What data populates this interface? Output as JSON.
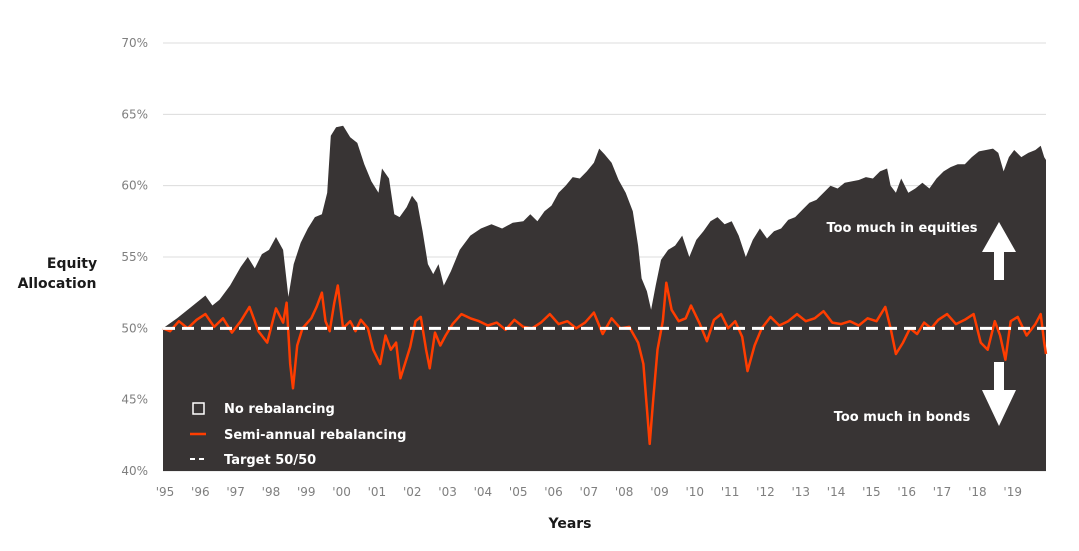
{
  "chart_data": {
    "type": "area",
    "title": "",
    "ylabel_lines": [
      "Equity",
      "Allocation"
    ],
    "xlabel": "Years",
    "ylim": [
      40,
      70
    ],
    "yticks": [
      40,
      45,
      50,
      55,
      60,
      65,
      70
    ],
    "ytick_labels": [
      "40%",
      "45%",
      "50%",
      "55%",
      "60%",
      "65%",
      "70%"
    ],
    "xlim": [
      1995.0,
      2020.0
    ],
    "xtick_labels": [
      "'95",
      "'96",
      "'97",
      "'98",
      "'99",
      "'00",
      "'01",
      "'02",
      "'03",
      "'04",
      "'05",
      "'06",
      "'07",
      "'08",
      "'09",
      "'10",
      "'11",
      "'12",
      "'13",
      "'14",
      "'15",
      "'16",
      "'17",
      "'18",
      "'19"
    ],
    "grid": "horizontal",
    "legend_position": "bottom-left (inside plot)",
    "series": [
      {
        "name": "No rebalancing",
        "kind": "area",
        "color": "#383434",
        "points": [
          [
            1995.0,
            50.0
          ],
          [
            1995.4,
            50.7
          ],
          [
            1995.8,
            51.5
          ],
          [
            1996.2,
            52.3
          ],
          [
            1996.4,
            51.6
          ],
          [
            1996.6,
            52.0
          ],
          [
            1996.9,
            53.0
          ],
          [
            1997.2,
            54.3
          ],
          [
            1997.4,
            55.0
          ],
          [
            1997.6,
            54.2
          ],
          [
            1997.8,
            55.2
          ],
          [
            1998.0,
            55.5
          ],
          [
            1998.2,
            56.4
          ],
          [
            1998.4,
            55.5
          ],
          [
            1998.55,
            52.2
          ],
          [
            1998.7,
            54.5
          ],
          [
            1998.9,
            56.0
          ],
          [
            1999.1,
            57.0
          ],
          [
            1999.3,
            57.8
          ],
          [
            1999.5,
            58.0
          ],
          [
            1999.65,
            59.5
          ],
          [
            1999.75,
            63.5
          ],
          [
            1999.9,
            64.1
          ],
          [
            2000.1,
            64.2
          ],
          [
            2000.3,
            63.4
          ],
          [
            2000.5,
            63.0
          ],
          [
            2000.7,
            61.5
          ],
          [
            2000.9,
            60.3
          ],
          [
            2001.1,
            59.5
          ],
          [
            2001.2,
            61.2
          ],
          [
            2001.4,
            60.5
          ],
          [
            2001.55,
            58.0
          ],
          [
            2001.7,
            57.8
          ],
          [
            2001.9,
            58.5
          ],
          [
            2002.05,
            59.3
          ],
          [
            2002.2,
            58.8
          ],
          [
            2002.35,
            56.8
          ],
          [
            2002.5,
            54.5
          ],
          [
            2002.65,
            53.8
          ],
          [
            2002.8,
            54.5
          ],
          [
            2002.95,
            53.0
          ],
          [
            2003.15,
            54.0
          ],
          [
            2003.4,
            55.5
          ],
          [
            2003.7,
            56.5
          ],
          [
            2004.0,
            57.0
          ],
          [
            2004.3,
            57.3
          ],
          [
            2004.6,
            57.0
          ],
          [
            2004.9,
            57.4
          ],
          [
            2005.2,
            57.5
          ],
          [
            2005.4,
            58.0
          ],
          [
            2005.6,
            57.5
          ],
          [
            2005.8,
            58.2
          ],
          [
            2006.0,
            58.6
          ],
          [
            2006.2,
            59.5
          ],
          [
            2006.4,
            60.0
          ],
          [
            2006.6,
            60.6
          ],
          [
            2006.8,
            60.5
          ],
          [
            2007.0,
            61.0
          ],
          [
            2007.2,
            61.6
          ],
          [
            2007.35,
            62.6
          ],
          [
            2007.5,
            62.2
          ],
          [
            2007.7,
            61.6
          ],
          [
            2007.9,
            60.4
          ],
          [
            2008.1,
            59.5
          ],
          [
            2008.3,
            58.2
          ],
          [
            2008.45,
            55.8
          ],
          [
            2008.55,
            53.5
          ],
          [
            2008.7,
            52.6
          ],
          [
            2008.82,
            51.3
          ],
          [
            2008.95,
            53.0
          ],
          [
            2009.1,
            54.8
          ],
          [
            2009.3,
            55.5
          ],
          [
            2009.5,
            55.8
          ],
          [
            2009.7,
            56.5
          ],
          [
            2009.9,
            55.0
          ],
          [
            2010.1,
            56.2
          ],
          [
            2010.3,
            56.8
          ],
          [
            2010.5,
            57.5
          ],
          [
            2010.7,
            57.8
          ],
          [
            2010.9,
            57.3
          ],
          [
            2011.1,
            57.5
          ],
          [
            2011.3,
            56.5
          ],
          [
            2011.5,
            55.0
          ],
          [
            2011.7,
            56.2
          ],
          [
            2011.9,
            57.0
          ],
          [
            2012.1,
            56.3
          ],
          [
            2012.3,
            56.8
          ],
          [
            2012.5,
            57.0
          ],
          [
            2012.7,
            57.6
          ],
          [
            2012.9,
            57.8
          ],
          [
            2013.1,
            58.3
          ],
          [
            2013.3,
            58.8
          ],
          [
            2013.5,
            59.0
          ],
          [
            2013.7,
            59.5
          ],
          [
            2013.9,
            60.0
          ],
          [
            2014.1,
            59.8
          ],
          [
            2014.3,
            60.2
          ],
          [
            2014.5,
            60.3
          ],
          [
            2014.7,
            60.4
          ],
          [
            2014.9,
            60.6
          ],
          [
            2015.1,
            60.5
          ],
          [
            2015.3,
            61.0
          ],
          [
            2015.5,
            61.2
          ],
          [
            2015.6,
            60.0
          ],
          [
            2015.75,
            59.5
          ],
          [
            2015.9,
            60.5
          ],
          [
            2016.1,
            59.5
          ],
          [
            2016.3,
            59.8
          ],
          [
            2016.5,
            60.2
          ],
          [
            2016.7,
            59.8
          ],
          [
            2016.9,
            60.5
          ],
          [
            2017.1,
            61.0
          ],
          [
            2017.3,
            61.3
          ],
          [
            2017.5,
            61.5
          ],
          [
            2017.7,
            61.5
          ],
          [
            2017.9,
            62.0
          ],
          [
            2018.1,
            62.4
          ],
          [
            2018.3,
            62.5
          ],
          [
            2018.5,
            62.6
          ],
          [
            2018.65,
            62.3
          ],
          [
            2018.8,
            61.0
          ],
          [
            2018.95,
            62.0
          ],
          [
            2019.1,
            62.5
          ],
          [
            2019.3,
            62.0
          ],
          [
            2019.5,
            62.3
          ],
          [
            2019.7,
            62.5
          ],
          [
            2019.85,
            62.8
          ],
          [
            2019.95,
            62.0
          ],
          [
            2020.0,
            61.8
          ]
        ]
      },
      {
        "name": "Semi-annual rebalancing",
        "kind": "line",
        "color": "#ff3d00",
        "points": [
          [
            1995.0,
            50.0
          ],
          [
            1995.2,
            49.8
          ],
          [
            1995.45,
            50.5
          ],
          [
            1995.7,
            50.0
          ],
          [
            1995.95,
            50.6
          ],
          [
            1996.2,
            51.0
          ],
          [
            1996.45,
            50.1
          ],
          [
            1996.7,
            50.7
          ],
          [
            1996.95,
            49.7
          ],
          [
            1997.2,
            50.5
          ],
          [
            1997.45,
            51.5
          ],
          [
            1997.7,
            49.8
          ],
          [
            1997.95,
            49.0
          ],
          [
            1998.2,
            51.4
          ],
          [
            1998.4,
            50.4
          ],
          [
            1998.5,
            51.8
          ],
          [
            1998.6,
            47.5
          ],
          [
            1998.68,
            45.8
          ],
          [
            1998.8,
            48.8
          ],
          [
            1998.95,
            50.0
          ],
          [
            1999.2,
            50.7
          ],
          [
            1999.35,
            51.5
          ],
          [
            1999.5,
            52.5
          ],
          [
            1999.6,
            50.5
          ],
          [
            1999.72,
            49.8
          ],
          [
            1999.85,
            51.8
          ],
          [
            1999.95,
            53.0
          ],
          [
            2000.1,
            50.0
          ],
          [
            2000.3,
            50.5
          ],
          [
            2000.45,
            49.8
          ],
          [
            2000.6,
            50.6
          ],
          [
            2000.8,
            50.0
          ],
          [
            2000.95,
            48.5
          ],
          [
            2001.15,
            47.5
          ],
          [
            2001.3,
            49.5
          ],
          [
            2001.45,
            48.5
          ],
          [
            2001.6,
            49.0
          ],
          [
            2001.72,
            46.5
          ],
          [
            2001.85,
            47.5
          ],
          [
            2002.0,
            48.7
          ],
          [
            2002.15,
            50.5
          ],
          [
            2002.3,
            50.8
          ],
          [
            2002.45,
            48.5
          ],
          [
            2002.55,
            47.2
          ],
          [
            2002.7,
            49.7
          ],
          [
            2002.85,
            48.8
          ],
          [
            2003.0,
            49.5
          ],
          [
            2003.2,
            50.3
          ],
          [
            2003.45,
            51.0
          ],
          [
            2003.7,
            50.7
          ],
          [
            2003.95,
            50.5
          ],
          [
            2004.2,
            50.2
          ],
          [
            2004.45,
            50.4
          ],
          [
            2004.7,
            49.9
          ],
          [
            2004.95,
            50.6
          ],
          [
            2005.2,
            50.1
          ],
          [
            2005.45,
            50.0
          ],
          [
            2005.7,
            50.4
          ],
          [
            2005.95,
            51.0
          ],
          [
            2006.2,
            50.3
          ],
          [
            2006.45,
            50.5
          ],
          [
            2006.7,
            50.0
          ],
          [
            2006.95,
            50.4
          ],
          [
            2007.2,
            51.1
          ],
          [
            2007.45,
            49.6
          ],
          [
            2007.7,
            50.7
          ],
          [
            2007.95,
            50.0
          ],
          [
            2008.2,
            50.1
          ],
          [
            2008.45,
            49.0
          ],
          [
            2008.6,
            47.5
          ],
          [
            2008.68,
            45.0
          ],
          [
            2008.78,
            41.9
          ],
          [
            2008.88,
            45.0
          ],
          [
            2009.0,
            48.5
          ],
          [
            2009.15,
            50.5
          ],
          [
            2009.25,
            53.2
          ],
          [
            2009.4,
            51.3
          ],
          [
            2009.6,
            50.5
          ],
          [
            2009.8,
            50.7
          ],
          [
            2009.95,
            51.6
          ],
          [
            2010.2,
            50.3
          ],
          [
            2010.4,
            49.1
          ],
          [
            2010.6,
            50.6
          ],
          [
            2010.8,
            51.0
          ],
          [
            2011.0,
            50.0
          ],
          [
            2011.2,
            50.5
          ],
          [
            2011.4,
            49.4
          ],
          [
            2011.55,
            47.0
          ],
          [
            2011.75,
            48.8
          ],
          [
            2011.95,
            50.0
          ],
          [
            2012.2,
            50.8
          ],
          [
            2012.45,
            50.2
          ],
          [
            2012.7,
            50.5
          ],
          [
            2012.95,
            51.0
          ],
          [
            2013.2,
            50.5
          ],
          [
            2013.45,
            50.7
          ],
          [
            2013.7,
            51.2
          ],
          [
            2013.95,
            50.4
          ],
          [
            2014.2,
            50.3
          ],
          [
            2014.45,
            50.5
          ],
          [
            2014.7,
            50.2
          ],
          [
            2014.95,
            50.7
          ],
          [
            2015.2,
            50.5
          ],
          [
            2015.45,
            51.5
          ],
          [
            2015.6,
            50.0
          ],
          [
            2015.75,
            48.2
          ],
          [
            2015.95,
            49.0
          ],
          [
            2016.15,
            50.0
          ],
          [
            2016.35,
            49.6
          ],
          [
            2016.55,
            50.4
          ],
          [
            2016.75,
            50.0
          ],
          [
            2016.95,
            50.6
          ],
          [
            2017.2,
            51.0
          ],
          [
            2017.45,
            50.3
          ],
          [
            2017.7,
            50.6
          ],
          [
            2017.95,
            51.0
          ],
          [
            2018.15,
            49.0
          ],
          [
            2018.35,
            48.5
          ],
          [
            2018.55,
            50.5
          ],
          [
            2018.7,
            49.5
          ],
          [
            2018.85,
            47.8
          ],
          [
            2019.0,
            50.5
          ],
          [
            2019.2,
            50.8
          ],
          [
            2019.45,
            49.5
          ],
          [
            2019.7,
            50.3
          ],
          [
            2019.85,
            51.0
          ],
          [
            2019.95,
            49.0
          ],
          [
            2020.0,
            48.2
          ]
        ]
      },
      {
        "name": "Target 50/50",
        "kind": "dashed-line",
        "color": "#ffffff",
        "value": 50
      }
    ],
    "annotations": [
      {
        "text": "Too much in equities",
        "arrow": "up"
      },
      {
        "text": "Too much in bonds",
        "arrow": "down"
      }
    ]
  }
}
